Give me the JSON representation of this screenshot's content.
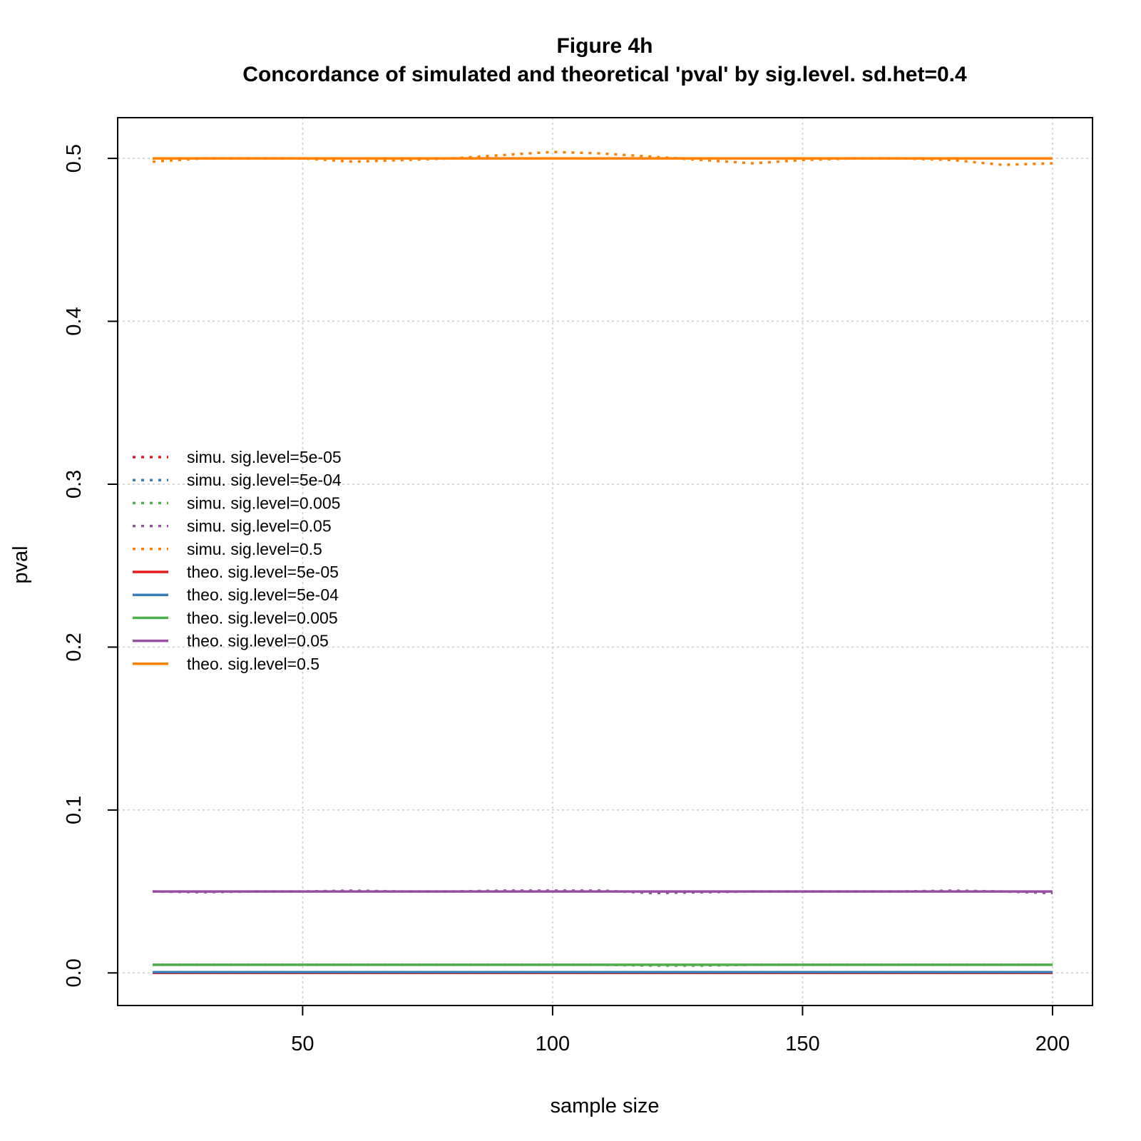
{
  "chart_data": {
    "type": "line",
    "title": "Figure 4h",
    "subtitle": "Concordance of simulated and theoretical 'pval' by sig.level. sd.het=0.4",
    "xlabel": "sample size",
    "ylabel": "pval",
    "xlim": [
      13,
      208
    ],
    "ylim": [
      -0.02,
      0.525
    ],
    "xticks": [
      50,
      100,
      150,
      200
    ],
    "yticks": [
      0.0,
      0.1,
      0.2,
      0.3,
      0.4,
      0.5
    ],
    "ytick_labels": [
      "0.0",
      "0.1",
      "0.2",
      "0.3",
      "0.4",
      "0.5"
    ],
    "grid": true,
    "legend_position": "center-left",
    "x": [
      20,
      30,
      40,
      50,
      60,
      70,
      80,
      90,
      100,
      110,
      120,
      130,
      140,
      150,
      160,
      170,
      180,
      190,
      200
    ],
    "series": [
      {
        "name": "simu. sig.level=5e-05",
        "style": "dotted",
        "color": "#e41a1c",
        "values": [
          5e-05,
          5e-05,
          5e-05,
          5e-05,
          5e-05,
          5e-05,
          5e-05,
          5e-05,
          5e-05,
          5e-05,
          5e-05,
          5e-05,
          5e-05,
          5e-05,
          5e-05,
          5e-05,
          5e-05,
          5e-05,
          5e-05
        ]
      },
      {
        "name": "simu. sig.level=5e-04",
        "style": "dotted",
        "color": "#377eb8",
        "values": [
          0.0005,
          0.0005,
          0.0005,
          0.0005,
          0.0005,
          0.0005,
          0.0005,
          0.0005,
          0.0005,
          0.0005,
          0.0005,
          0.0005,
          0.0005,
          0.0005,
          0.0005,
          0.0005,
          0.0005,
          0.0005,
          0.0005
        ]
      },
      {
        "name": "simu. sig.level=0.005",
        "style": "dotted",
        "color": "#4daf4a",
        "values": [
          0.005,
          0.005,
          0.005,
          0.005,
          0.005,
          0.005,
          0.005,
          0.005,
          0.005,
          0.005,
          0.0045,
          0.0045,
          0.005,
          0.005,
          0.005,
          0.005,
          0.005,
          0.005,
          0.005
        ]
      },
      {
        "name": "simu. sig.level=0.05",
        "style": "dotted",
        "color": "#984ea3",
        "values": [
          0.05,
          0.0495,
          0.05,
          0.05,
          0.0505,
          0.05,
          0.05,
          0.0505,
          0.0505,
          0.0505,
          0.049,
          0.0495,
          0.05,
          0.05,
          0.05,
          0.05,
          0.0505,
          0.05,
          0.049
        ]
      },
      {
        "name": "simu. sig.level=0.5",
        "style": "dotted",
        "color": "#ff7f00",
        "values": [
          0.498,
          0.5,
          0.5,
          0.5,
          0.498,
          0.499,
          0.5,
          0.502,
          0.504,
          0.503,
          0.501,
          0.499,
          0.497,
          0.499,
          0.5,
          0.5,
          0.499,
          0.496,
          0.497
        ]
      },
      {
        "name": "theo. sig.level=5e-05",
        "style": "solid",
        "color": "#e41a1c",
        "values": [
          5e-05,
          5e-05,
          5e-05,
          5e-05,
          5e-05,
          5e-05,
          5e-05,
          5e-05,
          5e-05,
          5e-05,
          5e-05,
          5e-05,
          5e-05,
          5e-05,
          5e-05,
          5e-05,
          5e-05,
          5e-05,
          5e-05
        ]
      },
      {
        "name": "theo. sig.level=5e-04",
        "style": "solid",
        "color": "#377eb8",
        "values": [
          0.0005,
          0.0005,
          0.0005,
          0.0005,
          0.0005,
          0.0005,
          0.0005,
          0.0005,
          0.0005,
          0.0005,
          0.0005,
          0.0005,
          0.0005,
          0.0005,
          0.0005,
          0.0005,
          0.0005,
          0.0005,
          0.0005
        ]
      },
      {
        "name": "theo. sig.level=0.005",
        "style": "solid",
        "color": "#4daf4a",
        "values": [
          0.005,
          0.005,
          0.005,
          0.005,
          0.005,
          0.005,
          0.005,
          0.005,
          0.005,
          0.005,
          0.005,
          0.005,
          0.005,
          0.005,
          0.005,
          0.005,
          0.005,
          0.005,
          0.005
        ]
      },
      {
        "name": "theo. sig.level=0.05",
        "style": "solid",
        "color": "#984ea3",
        "values": [
          0.05,
          0.05,
          0.05,
          0.05,
          0.05,
          0.05,
          0.05,
          0.05,
          0.05,
          0.05,
          0.05,
          0.05,
          0.05,
          0.05,
          0.05,
          0.05,
          0.05,
          0.05,
          0.05
        ]
      },
      {
        "name": "theo. sig.level=0.5",
        "style": "solid",
        "color": "#ff7f00",
        "values": [
          0.5,
          0.5,
          0.5,
          0.5,
          0.5,
          0.5,
          0.5,
          0.5,
          0.5,
          0.5,
          0.5,
          0.5,
          0.5,
          0.5,
          0.5,
          0.5,
          0.5,
          0.5,
          0.5
        ]
      }
    ]
  }
}
